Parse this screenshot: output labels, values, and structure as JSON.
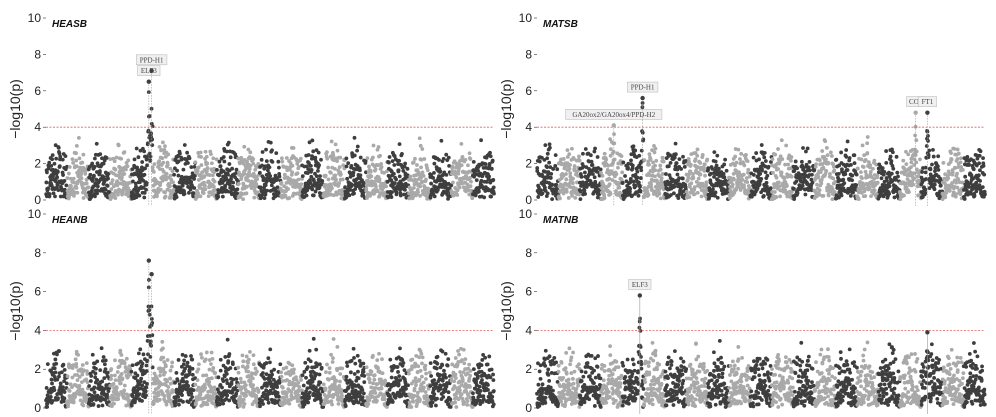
{
  "chart_data": [
    {
      "type": "scatter",
      "title": "HEASB",
      "ylabel": "−log10(p)",
      "ylim": [
        0,
        10
      ],
      "yticks": [
        "0",
        "2",
        "4",
        "6",
        "8",
        "10"
      ],
      "threshold": 4,
      "chromosomes": 21,
      "peaks": [
        {
          "label": "ELF3",
          "chr": 4,
          "pos": 0.82,
          "y": 6.5
        },
        {
          "label": "PPD-H1",
          "chr": 4,
          "pos": 0.95,
          "y": 7.1
        }
      ]
    },
    {
      "type": "scatter",
      "title": "MATSB",
      "ylabel": "−log10(p)",
      "ylim": [
        0,
        10
      ],
      "yticks": [
        "0",
        "2",
        "4",
        "6",
        "8",
        "10"
      ],
      "threshold": 4,
      "chromosomes": 21,
      "peaks": [
        {
          "label": "GA20ox2/GA20ox4/PPD-H2",
          "chr": 3,
          "pos": 0.6,
          "y": 4.1
        },
        {
          "label": "PPD-H1",
          "chr": 4,
          "pos": 0.95,
          "y": 5.6
        },
        {
          "label": "CO2",
          "chr": 17,
          "pos": 0.75,
          "y": 4.8
        },
        {
          "label": "FT1",
          "chr": 18,
          "pos": 0.3,
          "y": 4.8
        }
      ]
    },
    {
      "type": "scatter",
      "title": "HEANB",
      "ylabel": "−log10(p)",
      "ylim": [
        0,
        10
      ],
      "yticks": [
        "0",
        "2",
        "4",
        "6",
        "8",
        "10"
      ],
      "threshold": 4,
      "chromosomes": 21,
      "peaks": [
        {
          "label": "",
          "chr": 4,
          "pos": 0.82,
          "y": 7.6
        },
        {
          "label": "",
          "chr": 4,
          "pos": 0.95,
          "y": 6.9
        }
      ]
    },
    {
      "type": "scatter",
      "title": "MATNB",
      "ylabel": "−log10(p)",
      "ylim": [
        0,
        10
      ],
      "yticks": [
        "0",
        "2",
        "4",
        "6",
        "8",
        "10"
      ],
      "threshold": 4,
      "chromosomes": 21,
      "peaks": [
        {
          "label": "ELF3",
          "chr": 4,
          "pos": 0.82,
          "y": 5.8
        },
        {
          "label": "",
          "chr": 18,
          "pos": 0.3,
          "y": 3.9
        }
      ]
    }
  ],
  "colors": {
    "dark": "#3e3e3e",
    "light": "#a9a9a9",
    "threshold": "#e06060",
    "guide": "#9a9a9a",
    "label_box": "#f0f0f0",
    "label_border": "#bdbdbd"
  }
}
